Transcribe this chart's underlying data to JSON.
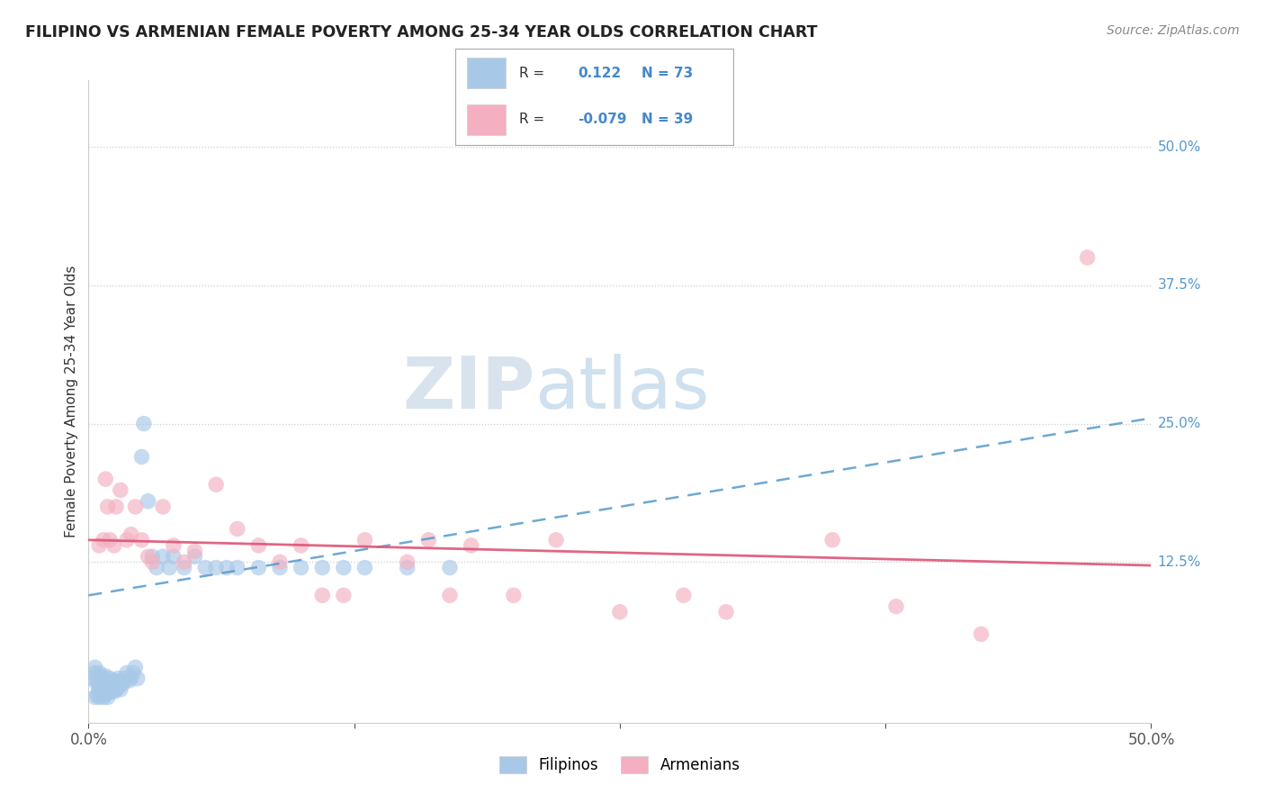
{
  "title": "FILIPINO VS ARMENIAN FEMALE POVERTY AMONG 25-34 YEAR OLDS CORRELATION CHART",
  "source": "Source: ZipAtlas.com",
  "ylabel": "Female Poverty Among 25-34 Year Olds",
  "xlim": [
    0.0,
    0.5
  ],
  "ylim": [
    -0.02,
    0.56
  ],
  "filipino_R": 0.122,
  "filipino_N": 73,
  "armenian_R": -0.079,
  "armenian_N": 39,
  "filipino_color": "#a8c8e8",
  "armenian_color": "#f4b0c0",
  "filipino_line_color": "#5599cc",
  "armenian_line_color": "#dd5577",
  "background_color": "#ffffff",
  "grid_color": "#cccccc",
  "filipino_x": [
    0.002,
    0.003,
    0.003,
    0.004,
    0.004,
    0.005,
    0.005,
    0.005,
    0.006,
    0.006,
    0.006,
    0.007,
    0.007,
    0.007,
    0.007,
    0.008,
    0.008,
    0.008,
    0.008,
    0.009,
    0.009,
    0.01,
    0.01,
    0.01,
    0.01,
    0.011,
    0.011,
    0.012,
    0.012,
    0.012,
    0.013,
    0.013,
    0.014,
    0.014,
    0.015,
    0.015,
    0.016,
    0.017,
    0.018,
    0.019,
    0.02,
    0.021,
    0.022,
    0.023,
    0.025,
    0.026,
    0.028,
    0.03,
    0.032,
    0.035,
    0.038,
    0.04,
    0.045,
    0.05,
    0.055,
    0.06,
    0.065,
    0.07,
    0.08,
    0.09,
    0.1,
    0.11,
    0.12,
    0.13,
    0.15,
    0.17,
    0.004,
    0.006,
    0.008,
    0.003,
    0.005,
    0.007,
    0.009
  ],
  "filipino_y": [
    0.02,
    0.025,
    0.03,
    0.015,
    0.02,
    0.01,
    0.015,
    0.025,
    0.012,
    0.018,
    0.022,
    0.008,
    0.012,
    0.016,
    0.02,
    0.01,
    0.013,
    0.017,
    0.022,
    0.01,
    0.015,
    0.008,
    0.012,
    0.015,
    0.02,
    0.01,
    0.015,
    0.008,
    0.012,
    0.018,
    0.01,
    0.015,
    0.012,
    0.02,
    0.01,
    0.018,
    0.015,
    0.02,
    0.025,
    0.018,
    0.02,
    0.025,
    0.03,
    0.02,
    0.22,
    0.25,
    0.18,
    0.13,
    0.12,
    0.13,
    0.12,
    0.13,
    0.12,
    0.13,
    0.12,
    0.12,
    0.12,
    0.12,
    0.12,
    0.12,
    0.12,
    0.12,
    0.12,
    0.12,
    0.12,
    0.12,
    0.005,
    0.005,
    0.005,
    0.003,
    0.003,
    0.003,
    0.003
  ],
  "armenian_x": [
    0.005,
    0.007,
    0.008,
    0.009,
    0.01,
    0.012,
    0.013,
    0.015,
    0.018,
    0.02,
    0.022,
    0.025,
    0.028,
    0.03,
    0.035,
    0.04,
    0.045,
    0.05,
    0.06,
    0.07,
    0.08,
    0.09,
    0.1,
    0.11,
    0.12,
    0.13,
    0.15,
    0.16,
    0.17,
    0.18,
    0.2,
    0.22,
    0.25,
    0.28,
    0.3,
    0.35,
    0.38,
    0.42,
    0.47
  ],
  "armenian_y": [
    0.14,
    0.145,
    0.2,
    0.175,
    0.145,
    0.14,
    0.175,
    0.19,
    0.145,
    0.15,
    0.175,
    0.145,
    0.13,
    0.125,
    0.175,
    0.14,
    0.125,
    0.135,
    0.195,
    0.155,
    0.14,
    0.125,
    0.14,
    0.095,
    0.095,
    0.145,
    0.125,
    0.145,
    0.095,
    0.14,
    0.095,
    0.145,
    0.08,
    0.095,
    0.08,
    0.145,
    0.085,
    0.06,
    0.4
  ],
  "fil_line_x0": 0.0,
  "fil_line_y0": 0.095,
  "fil_line_x1": 0.5,
  "fil_line_y1": 0.255,
  "arm_line_x0": 0.0,
  "arm_line_y0": 0.145,
  "arm_line_x1": 0.5,
  "arm_line_y1": 0.122
}
